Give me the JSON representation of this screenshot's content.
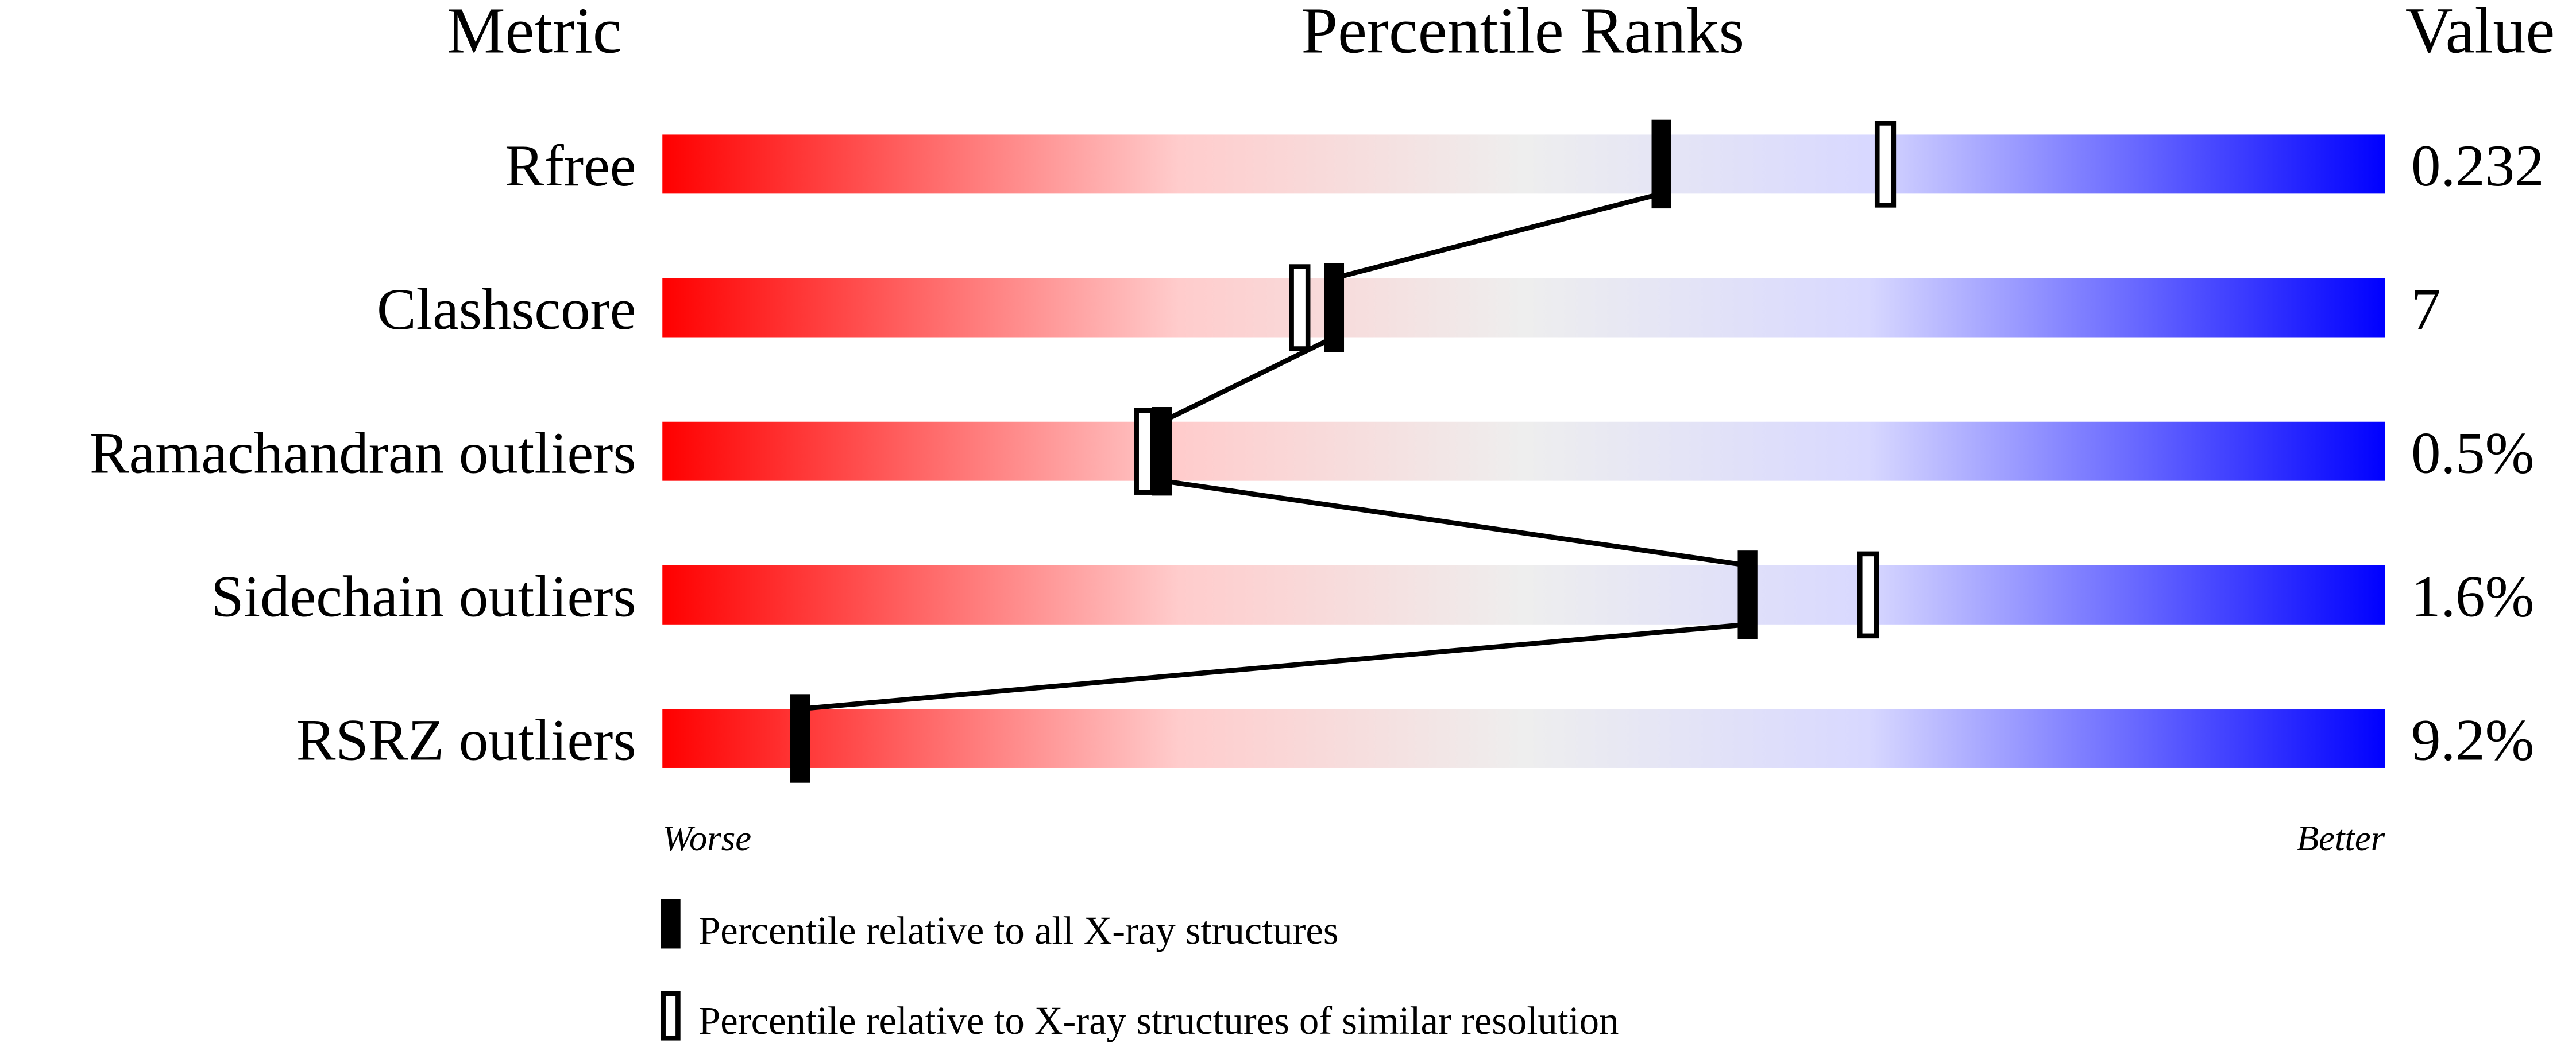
{
  "chart_data": {
    "type": "bar",
    "title": "Percentile Ranks",
    "headers": {
      "metric": "Metric",
      "ranks": "Percentile Ranks",
      "value": "Value"
    },
    "xlim": [
      0,
      100
    ],
    "axis_labels": {
      "left": "Worse",
      "right": "Better"
    },
    "gradient_colors": [
      "#ff0000",
      "#ffcccc",
      "#eeeeee",
      "#d8d8ff",
      "#0000ff"
    ],
    "rows": [
      {
        "metric": "Rfree",
        "value": "0.232",
        "percentile_all": 58,
        "percentile_similar": 71
      },
      {
        "metric": "Clashscore",
        "value": "7",
        "percentile_all": 39,
        "percentile_similar": 37
      },
      {
        "metric": "Ramachandran outliers",
        "value": "0.5%",
        "percentile_all": 29,
        "percentile_similar": 28
      },
      {
        "metric": "Sidechain outliers",
        "value": "1.6%",
        "percentile_all": 63,
        "percentile_similar": 70
      },
      {
        "metric": "RSRZ outliers",
        "value": "9.2%",
        "percentile_all": 8,
        "percentile_similar": null
      }
    ],
    "legend": {
      "placement": "bottom",
      "filled": "Percentile relative to all X-ray structures",
      "open": "Percentile relative to X-ray structures of similar resolution"
    }
  }
}
